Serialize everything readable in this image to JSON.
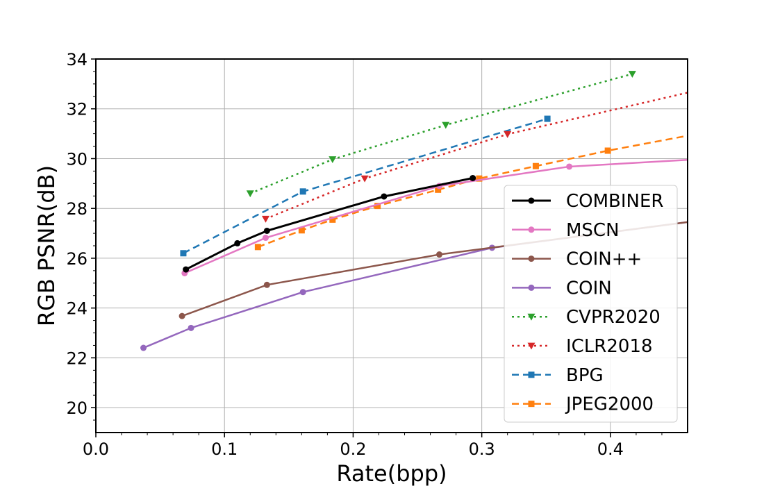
{
  "chart_data": {
    "type": "line",
    "title": "",
    "xlabel": "Rate(bpp)",
    "ylabel": "RGB PSNR(dB)",
    "xlim": [
      0.0,
      0.46
    ],
    "ylim": [
      19.0,
      34.0
    ],
    "xticks": [
      0.0,
      0.1,
      0.2,
      0.3,
      0.4
    ],
    "xtick_labels": [
      "0.0",
      "0.1",
      "0.2",
      "0.3",
      "0.4"
    ],
    "yticks": [
      20,
      22,
      24,
      26,
      28,
      30,
      32,
      34
    ],
    "ytick_labels": [
      "20",
      "22",
      "24",
      "26",
      "28",
      "30",
      "32",
      "34"
    ],
    "grid": true,
    "legend_position": "lower-right",
    "series": [
      {
        "name": "COMBINER",
        "color": "#000000",
        "line_style": "solid",
        "marker": "circle",
        "emphasis": true,
        "x": [
          0.07,
          0.11,
          0.133,
          0.224,
          0.293
        ],
        "y": [
          25.55,
          26.6,
          27.1,
          28.48,
          29.22
        ]
      },
      {
        "name": "MSCN",
        "color": "#e377c2",
        "line_style": "solid",
        "marker": "circle",
        "x": [
          0.069,
          0.132,
          0.267,
          0.368,
          0.46
        ],
        "y": [
          25.4,
          26.82,
          28.9,
          29.68,
          29.95
        ]
      },
      {
        "name": "COIN++",
        "color": "#8c564b",
        "line_style": "solid",
        "marker": "circle",
        "x": [
          0.067,
          0.133,
          0.267,
          0.46
        ],
        "y": [
          23.68,
          24.93,
          26.15,
          27.45
        ]
      },
      {
        "name": "COIN",
        "color": "#9467bd",
        "line_style": "solid",
        "marker": "circle",
        "x": [
          0.037,
          0.074,
          0.161,
          0.308,
          0.46
        ],
        "y": [
          22.4,
          23.2,
          24.64,
          26.42,
          27.45
        ]
      },
      {
        "name": "CVPR2020",
        "color": "#2ca02c",
        "line_style": "dotted",
        "marker": "triangle-down",
        "x": [
          0.12,
          0.184,
          0.272,
          0.417
        ],
        "y": [
          28.6,
          29.97,
          31.35,
          33.4
        ]
      },
      {
        "name": "ICLR2018",
        "color": "#d62728",
        "line_style": "dotted",
        "marker": "triangle-down",
        "x": [
          0.132,
          0.209,
          0.32,
          0.46
        ],
        "y": [
          27.58,
          29.2,
          30.98,
          32.65
        ]
      },
      {
        "name": "BPG",
        "color": "#1f77b4",
        "line_style": "dashed",
        "marker": "square",
        "x": [
          0.068,
          0.161,
          0.351
        ],
        "y": [
          26.2,
          28.68,
          31.6
        ]
      },
      {
        "name": "JPEG2000",
        "color": "#ff7f0e",
        "line_style": "dashed",
        "marker": "square",
        "x": [
          0.126,
          0.16,
          0.184,
          0.219,
          0.266,
          0.298,
          0.342,
          0.398,
          0.46
        ],
        "y": [
          26.45,
          27.12,
          27.55,
          28.1,
          28.75,
          29.2,
          29.7,
          30.32,
          30.92
        ]
      }
    ]
  }
}
